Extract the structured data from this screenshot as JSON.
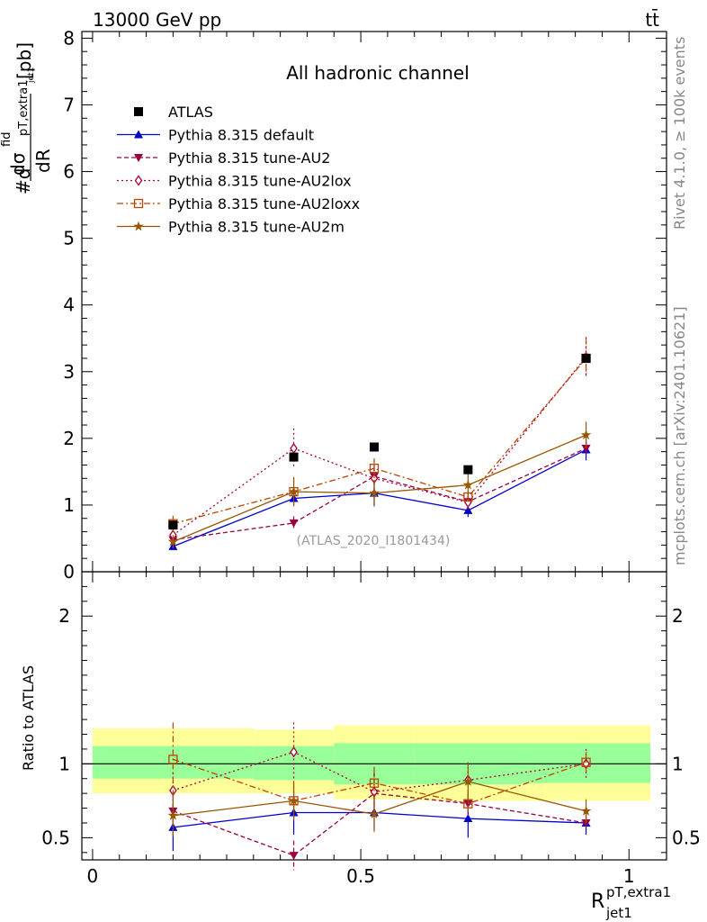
{
  "header": {
    "energy_label": "13000 GeV pp",
    "process_label": "tt̄"
  },
  "side_labels": {
    "rivet": "Rivet 4.1.0, ≥ 100k events",
    "mcplots": "mcplots.cern.ch [arXiv:2401.10621]"
  },
  "chart_data": {
    "type": "line",
    "title": "All hadronic channel",
    "watermark": "(ATLAS_2020_I1801434)",
    "xlabel_main": "R",
    "xlabel_sup": "pT,extra1",
    "xlabel_sub": "jet1",
    "ylabel_prefix": "#d",
    "ylabel_num": "dσ",
    "ylabel_num_sup": "fid",
    "ylabel_num_sub": "pT,extra1",
    "ylabel_num_subsub": "jet1",
    "ylabel_den": "dR",
    "ylabel_unit": "[pb]",
    "ratio_ylabel": "Ratio to ATLAS",
    "xlim": [
      -0.02,
      1.07
    ],
    "ylim_main": [
      0,
      8.1
    ],
    "ylim_ratio": [
      0.35,
      2.3
    ],
    "x_ticks": [
      {
        "v": 0,
        "label": "0"
      },
      {
        "v": 0.5,
        "label": "0.5"
      },
      {
        "v": 1,
        "label": "1"
      }
    ],
    "y_ticks_main": [
      {
        "v": 0,
        "label": "0"
      },
      {
        "v": 1,
        "label": "1"
      },
      {
        "v": 2,
        "label": "2"
      },
      {
        "v": 3,
        "label": "3"
      },
      {
        "v": 4,
        "label": "4"
      },
      {
        "v": 5,
        "label": "5"
      },
      {
        "v": 6,
        "label": "6"
      },
      {
        "v": 7,
        "label": "7"
      },
      {
        "v": 8,
        "label": "8"
      }
    ],
    "y_ticks_ratio": [
      {
        "v": 0.5,
        "label": "0.5"
      },
      {
        "v": 1,
        "label": "1"
      },
      {
        "v": 2,
        "label": "2"
      }
    ],
    "bins": [
      [
        0,
        0.3
      ],
      [
        0.3,
        0.45
      ],
      [
        0.45,
        0.6
      ],
      [
        0.6,
        0.8
      ],
      [
        0.8,
        1.04
      ]
    ],
    "band_outer": [
      [
        0.8,
        1.24
      ],
      [
        0.8,
        1.23
      ],
      [
        0.76,
        1.26
      ],
      [
        0.75,
        1.26
      ],
      [
        0.75,
        1.26
      ]
    ],
    "band_inner": [
      [
        0.9,
        1.12
      ],
      [
        0.89,
        1.12
      ],
      [
        0.86,
        1.14
      ],
      [
        0.86,
        1.14
      ],
      [
        0.87,
        1.14
      ]
    ],
    "data": {
      "name": "ATLAS",
      "x": [
        0.15,
        0.375,
        0.525,
        0.7,
        0.92
      ],
      "y": [
        0.7,
        1.72,
        1.87,
        1.53,
        3.2
      ]
    },
    "series": [
      {
        "name": "Pythia 8.315 default",
        "color": "#0000cc",
        "style": "solid",
        "marker": "tri-up",
        "x": [
          0.15,
          0.375,
          0.525,
          0.7,
          0.92
        ],
        "y": [
          0.38,
          1.1,
          1.18,
          0.92,
          1.83
        ],
        "err": [
          0.05,
          0.1,
          0.2,
          0.1,
          0.16
        ],
        "ratio": [
          0.57,
          0.67,
          0.67,
          0.63,
          0.6
        ],
        "ratio_err": [
          0.16,
          0.15,
          0.11,
          0.13,
          0.08
        ]
      },
      {
        "name": "Pythia 8.315 tune-AU2",
        "color": "#990044",
        "style": "dashed",
        "marker": "tri-down",
        "x": [
          0.15,
          0.375,
          0.525,
          0.7,
          0.92
        ],
        "y": [
          0.48,
          0.73,
          1.43,
          1.05,
          1.85
        ],
        "err": [
          0.06,
          0.1,
          0.15,
          0.08,
          0.1
        ],
        "ratio": [
          0.68,
          0.38,
          0.8,
          0.73,
          0.6
        ],
        "ratio_err": [
          0.1,
          0.1,
          0.14,
          0.06,
          0.05
        ]
      },
      {
        "name": "Pythia 8.315 tune-AU2lox",
        "color": "#aa0033",
        "style": "dotted",
        "marker": "diamond",
        "x": [
          0.15,
          0.375,
          0.525,
          0.7,
          0.92
        ],
        "y": [
          0.55,
          1.85,
          1.4,
          1.04,
          3.22
        ],
        "err": [
          0.1,
          0.3,
          0.2,
          0.12,
          0.3
        ],
        "ratio": [
          0.82,
          1.08,
          0.81,
          0.89,
          1.0
        ],
        "ratio_err": [
          0.12,
          0.2,
          0.12,
          0.12,
          0.1
        ]
      },
      {
        "name": "Pythia 8.315 tune-AU2loxx",
        "color": "#bb4400",
        "style": "dashdot",
        "marker": "square-open",
        "x": [
          0.15,
          0.375,
          0.525,
          0.7,
          0.92
        ],
        "y": [
          0.72,
          1.2,
          1.55,
          1.12,
          3.2
        ],
        "err": [
          0.12,
          0.2,
          0.15,
          0.1,
          0.3
        ],
        "ratio": [
          1.03,
          0.75,
          0.87,
          0.73,
          1.01
        ],
        "ratio_err": [
          0.25,
          0.12,
          0.11,
          0.08,
          0.07
        ]
      },
      {
        "name": "Pythia 8.315 tune-AU2m",
        "color": "#995500",
        "style": "solid",
        "marker": "star",
        "x": [
          0.15,
          0.375,
          0.525,
          0.7,
          0.92
        ],
        "y": [
          0.45,
          1.2,
          1.18,
          1.3,
          2.05
        ],
        "err": [
          0.1,
          0.22,
          0.2,
          0.2,
          0.2
        ],
        "ratio": [
          0.65,
          0.75,
          0.66,
          0.88,
          0.68
        ],
        "ratio_err": [
          0.14,
          0.13,
          0.12,
          0.13,
          0.08
        ]
      }
    ]
  }
}
